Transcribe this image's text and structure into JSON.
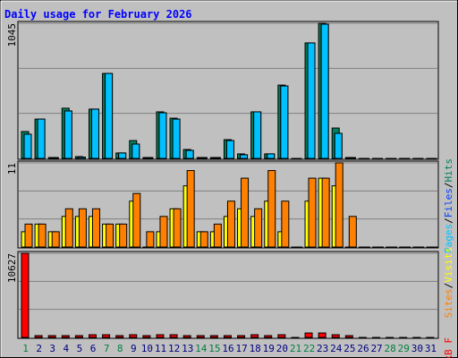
{
  "title": "Daily usage for February 2026",
  "legend_separator": "/",
  "categories": [
    "1",
    "2",
    "3",
    "4",
    "5",
    "6",
    "7",
    "8",
    "9",
    "10",
    "11",
    "12",
    "13",
    "14",
    "15",
    "16",
    "17",
    "18",
    "19",
    "20",
    "21",
    "22",
    "23",
    "24",
    "25",
    "26",
    "27",
    "28",
    "29",
    "30",
    "31"
  ],
  "category_colors": [
    "#008040",
    "#000080",
    "#000080",
    "#000080",
    "#000080",
    "#000080",
    "#008040",
    "#008040",
    "#000080",
    "#000080",
    "#000080",
    "#000080",
    "#000080",
    "#008040",
    "#008040",
    "#000080",
    "#000080",
    "#000080",
    "#000080",
    "#000080",
    "#008040",
    "#008040",
    "#000080",
    "#000080",
    "#000080",
    "#000080",
    "#000080",
    "#008040",
    "#008040",
    "#000080",
    "#000080"
  ],
  "chart_data": [
    {
      "type": "bar",
      "ylim": [
        0,
        1045
      ],
      "yticks": [
        1045
      ],
      "grid_divisions": 3,
      "series": [
        {
          "name": "Hits",
          "color": "#00805c",
          "values": [
            208,
            304,
            7,
            388,
            14,
            381,
            657,
            42,
            138,
            7,
            360,
            311,
            69,
            7,
            7,
            145,
            35,
            360,
            35,
            567,
            0,
            893,
            1045,
            235,
            7,
            0,
            0,
            0,
            0,
            0,
            0
          ]
        },
        {
          "name": "Files",
          "color": "#0040ff",
          "values": [
            187,
            304,
            7,
            367,
            10,
            381,
            657,
            42,
            111,
            7,
            353,
            304,
            62,
            7,
            7,
            138,
            28,
            360,
            35,
            560,
            0,
            893,
            1038,
            194,
            7,
            0,
            0,
            0,
            0,
            0,
            0
          ]
        },
        {
          "name": "Pages",
          "color": "#00c0ff",
          "values": [
            187,
            304,
            7,
            367,
            10,
            381,
            657,
            42,
            111,
            7,
            353,
            304,
            62,
            7,
            7,
            138,
            28,
            360,
            35,
            560,
            0,
            893,
            1038,
            194,
            7,
            0,
            0,
            0,
            0,
            0,
            0
          ]
        }
      ]
    },
    {
      "type": "bar",
      "ylim": [
        0,
        11
      ],
      "yticks": [
        11
      ],
      "grid_divisions": 3,
      "series": [
        {
          "name": "Visits",
          "color": "#ffff00",
          "values": [
            2,
            3,
            2,
            4,
            4,
            4,
            3,
            3,
            6,
            0,
            2,
            5,
            8,
            2,
            2,
            4,
            5,
            4,
            6,
            2,
            0,
            6,
            9,
            8,
            0,
            0,
            0,
            0,
            0,
            0,
            0
          ]
        },
        {
          "name": "Sites",
          "color": "#ff8000",
          "values": [
            3,
            3,
            2,
            5,
            5,
            5,
            3,
            3,
            7,
            2,
            4,
            5,
            10,
            2,
            3,
            6,
            9,
            5,
            10,
            6,
            0,
            9,
            9,
            11,
            4,
            0,
            0,
            0,
            0,
            0,
            0
          ]
        }
      ]
    },
    {
      "type": "bar",
      "ylim": [
        0,
        10627
      ],
      "yticks": [
        10627
      ],
      "grid_divisions": 3,
      "series": [
        {
          "name": "kB F",
          "color": "#ff0000",
          "values": [
            10627,
            230,
            230,
            230,
            230,
            340,
            340,
            230,
            340,
            230,
            340,
            340,
            230,
            230,
            230,
            230,
            230,
            340,
            230,
            340,
            0,
            560,
            560,
            340,
            230,
            0,
            0,
            0,
            0,
            0,
            0
          ]
        }
      ]
    }
  ]
}
